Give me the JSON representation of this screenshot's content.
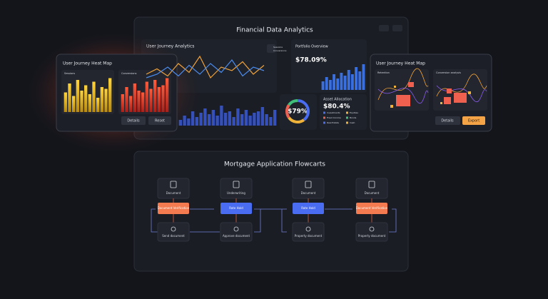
{
  "top_panel": {
    "title": "Financial Data Analytics"
  },
  "journey_analytics": {
    "title": "User Journey Analytics",
    "legend": [
      "Sessions",
      "Conversions"
    ],
    "series": [
      {
        "name": "Sessions",
        "color": "#f0a23a",
        "values": [
          40,
          55,
          35,
          70,
          45,
          90,
          30,
          60,
          50,
          75,
          40,
          65
        ]
      },
      {
        "name": "Conversions",
        "color": "#4a8cf0",
        "values": [
          30,
          40,
          60,
          35,
          65,
          40,
          70,
          45,
          80,
          35,
          60,
          50
        ]
      }
    ]
  },
  "portfolio": {
    "title": "Portfolio Overview",
    "value": "$78.09%",
    "values": [
      30,
      45,
      35,
      55,
      40,
      60,
      50,
      70,
      55,
      80,
      65,
      90
    ]
  },
  "activity": {
    "values": [
      20,
      35,
      25,
      50,
      30,
      45,
      60,
      40,
      55,
      35,
      70,
      45,
      50,
      30,
      60,
      40,
      55,
      35,
      45,
      50,
      65,
      40,
      30,
      55
    ]
  },
  "donut": {
    "label": "$79%",
    "values": [
      40,
      25,
      20,
      15
    ],
    "colors": [
      "#4a6cf0",
      "#f0b33a",
      "#f0604f",
      "#3fbf7a"
    ]
  },
  "allocation": {
    "title": "Asset Allocation",
    "value": "$80.4%",
    "items": [
      "Investments",
      "Equities",
      "Fixed Income",
      "Bonds",
      "Real Estate",
      "Cash"
    ]
  },
  "heatmap_left": {
    "title": "User Journey Heat Map",
    "panels": [
      "Sessions",
      "Conversions"
    ],
    "bars1": [
      55,
      80,
      45,
      90,
      60,
      75,
      50,
      85,
      40,
      70,
      65,
      95
    ],
    "bars2": [
      50,
      70,
      45,
      80,
      60,
      55,
      85,
      65,
      90,
      70,
      75,
      95
    ],
    "buttons": [
      "Details",
      "Reset"
    ]
  },
  "heatmap_right": {
    "title": "User Journey Heat Map",
    "panels": [
      "Retention",
      "Conversion analysis"
    ],
    "buttons": [
      "Details",
      "Export"
    ]
  },
  "flowchart": {
    "title": "Mortgage Application Flowcarts",
    "columns": [
      {
        "top": "Document",
        "middle": "Document Verification",
        "bottom": "Send document"
      },
      {
        "top": "Underwriting",
        "middle": "Rate Hold",
        "bottom": "Approve document"
      },
      {
        "top": "Document",
        "middle": "Rate Hold",
        "bottom": "Property document"
      },
      {
        "top": "Document",
        "middle": "Document Verification",
        "bottom": "Property document"
      }
    ]
  }
}
